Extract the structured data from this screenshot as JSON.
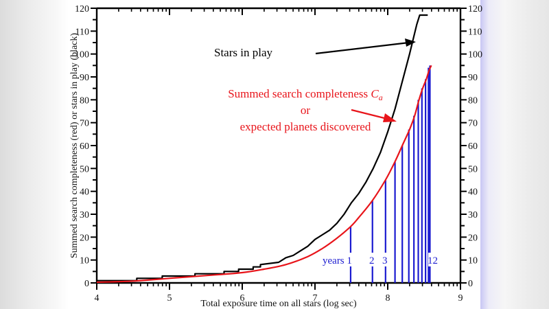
{
  "colors": {
    "stars_in_play": "#000000",
    "completeness": "#e8141a",
    "years": "#1a1ad0",
    "axis": "#000000"
  },
  "chart_data": {
    "type": "line",
    "title": "",
    "xlabel": "Total exposure time on all stars (log sec)",
    "ylabel": "Summed search completeness (red) or stars in play (black)",
    "xlim": [
      4,
      9
    ],
    "ylim": [
      0,
      120
    ],
    "x_ticks": [
      4,
      5,
      6,
      7,
      8,
      9
    ],
    "x_tick_labels": [
      "4",
      "5",
      "6",
      "7",
      "8",
      "9"
    ],
    "y_ticks": [
      0,
      10,
      20,
      30,
      40,
      50,
      60,
      70,
      80,
      90,
      100,
      110,
      120
    ],
    "y_tick_labels": [
      "0",
      "10",
      "20",
      "30",
      "40",
      "50",
      "60",
      "70",
      "80",
      "90",
      "100",
      "110",
      "120"
    ],
    "right_axis_mirrors_left": true,
    "grid": false,
    "series": [
      {
        "name": "Stars in play",
        "color": "#000000",
        "style": "step",
        "x": [
          4.0,
          4.55,
          4.55,
          4.9,
          4.9,
          5.35,
          5.35,
          5.75,
          5.75,
          5.95,
          5.95,
          6.15,
          6.15,
          6.25,
          6.25,
          6.5,
          6.6,
          6.7,
          6.8,
          6.9,
          7.0,
          7.1,
          7.2,
          7.3,
          7.4,
          7.5,
          7.6,
          7.7,
          7.8,
          7.9,
          8.0,
          8.1,
          8.2,
          8.3,
          8.4,
          8.44,
          8.55
        ],
        "y": [
          1,
          1,
          2,
          2,
          3,
          3,
          4,
          4,
          5,
          5,
          6,
          6,
          7,
          7,
          8,
          9,
          11,
          12,
          14,
          16,
          19,
          21,
          23,
          26,
          30,
          35,
          39,
          44,
          50,
          57,
          66,
          76,
          88,
          100,
          113,
          117,
          117
        ]
      },
      {
        "name": "Summed search completeness C_a",
        "color": "#e8141a",
        "style": "line",
        "x": [
          4.0,
          4.5,
          5.0,
          5.5,
          6.0,
          6.3,
          6.6,
          6.9,
          7.1,
          7.3,
          7.49,
          7.6,
          7.79,
          7.97,
          8.1,
          8.2,
          8.3,
          8.37,
          8.43,
          8.48,
          8.53,
          8.57,
          8.6
        ],
        "y": [
          0.3,
          0.8,
          2.0,
          3.2,
          4.5,
          6.0,
          8.0,
          11.5,
          15.0,
          19.5,
          24.6,
          28.5,
          36.0,
          45.0,
          53.0,
          60.0,
          67.0,
          73.0,
          80.0,
          85.0,
          89.0,
          93.0,
          95.0
        ]
      }
    ],
    "year_markers": {
      "color": "#1a1ad0",
      "x": [
        7.49,
        7.79,
        7.97,
        8.1,
        8.2,
        8.29,
        8.36,
        8.42,
        8.47,
        8.52,
        8.56,
        8.58
      ],
      "y_top": [
        24.6,
        36.0,
        45.0,
        53.0,
        60.0,
        67.0,
        73.0,
        80.0,
        85.0,
        89.0,
        94.0,
        95.0
      ],
      "labels": [
        {
          "text": "years 1",
          "year_index": 0
        },
        {
          "text": "2",
          "year_index": 1
        },
        {
          "text": "3",
          "year_index": 2
        },
        {
          "text": "12",
          "year_index": 11
        }
      ]
    },
    "annotations": [
      {
        "text": "Stars in play",
        "color": "#000000",
        "text_x": 5.6,
        "text_y": 104,
        "arrow_to_x": 8.38,
        "arrow_to_y": 105
      },
      {
        "text_lines": [
          "Summed search completeness C_a",
          "or",
          "expected planets discovered"
        ],
        "color": "#e8141a",
        "text_x": 6.85,
        "text_y": 83,
        "arrow_to_x": 8.27,
        "arrow_to_y": 71
      }
    ]
  },
  "annotations_text": {
    "stars_in_play": "Stars in play",
    "completeness_line1": "Summed search completeness ",
    "completeness_symbol": "C",
    "completeness_subscript": "a",
    "completeness_line2": "or",
    "completeness_line3": "expected planets discovered",
    "years_label": "years 1",
    "year2": "2",
    "year3": "3",
    "year12": "12"
  }
}
